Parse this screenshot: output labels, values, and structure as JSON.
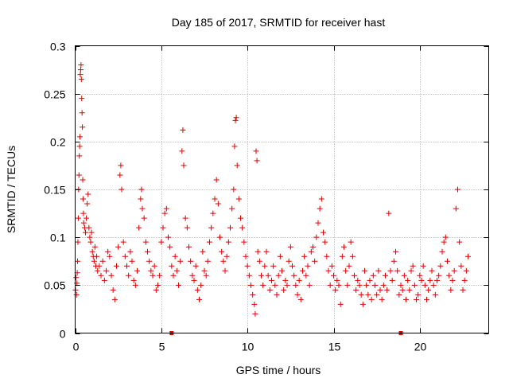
{
  "chart_data": {
    "type": "scatter",
    "title": "Day 185 of 2017, SRMTID for receiver hast",
    "xlabel": "GPS time / hours",
    "ylabel": "SRMTID / TECUs",
    "xlim": [
      0,
      24
    ],
    "ylim": [
      0,
      0.3
    ],
    "xticks": [
      {
        "value": 0,
        "label": "0"
      },
      {
        "value": 5,
        "label": "5"
      },
      {
        "value": 10,
        "label": "10"
      },
      {
        "value": 15,
        "label": "15"
      },
      {
        "value": 20,
        "label": "20"
      }
    ],
    "yticks": [
      {
        "value": 0,
        "label": "0"
      },
      {
        "value": 0.05,
        "label": "0.05"
      },
      {
        "value": 0.1,
        "label": "0.1"
      },
      {
        "value": 0.15,
        "label": "0.15"
      },
      {
        "value": 0.2,
        "label": "0.2"
      },
      {
        "value": 0.25,
        "label": "0.25"
      },
      {
        "value": 0.3,
        "label": "0.3"
      }
    ],
    "grid": true,
    "marker": "+",
    "series_color": "#e00000",
    "baseline_markers": [
      {
        "x": 5.6,
        "y": 0
      },
      {
        "x": 18.9,
        "y": 0
      }
    ],
    "points": [
      [
        0.02,
        0.045
      ],
      [
        0.05,
        0.058
      ],
      [
        0.08,
        0.04
      ],
      [
        0.1,
        0.052
      ],
      [
        0.12,
        0.063
      ],
      [
        0.14,
        0.075
      ],
      [
        0.16,
        0.095
      ],
      [
        0.18,
        0.12
      ],
      [
        0.2,
        0.15
      ],
      [
        0.22,
        0.165
      ],
      [
        0.24,
        0.185
      ],
      [
        0.26,
        0.195
      ],
      [
        0.28,
        0.205
      ],
      [
        0.3,
        0.27
      ],
      [
        0.32,
        0.275
      ],
      [
        0.34,
        0.28
      ],
      [
        0.36,
        0.265
      ],
      [
        0.38,
        0.245
      ],
      [
        0.4,
        0.23
      ],
      [
        0.42,
        0.215
      ],
      [
        0.44,
        0.16
      ],
      [
        0.46,
        0.14
      ],
      [
        0.48,
        0.125
      ],
      [
        0.5,
        0.115
      ],
      [
        0.55,
        0.11
      ],
      [
        0.6,
        0.105
      ],
      [
        0.65,
        0.12
      ],
      [
        0.7,
        0.135
      ],
      [
        0.75,
        0.145
      ],
      [
        0.8,
        0.11
      ],
      [
        0.85,
        0.1
      ],
      [
        0.9,
        0.095
      ],
      [
        0.95,
        0.105
      ],
      [
        1.0,
        0.085
      ],
      [
        1.05,
        0.08
      ],
      [
        1.1,
        0.075
      ],
      [
        1.15,
        0.09
      ],
      [
        1.2,
        0.07
      ],
      [
        1.25,
        0.08
      ],
      [
        1.3,
        0.065
      ],
      [
        1.4,
        0.07
      ],
      [
        1.5,
        0.06
      ],
      [
        1.6,
        0.075
      ],
      [
        1.7,
        0.055
      ],
      [
        1.8,
        0.065
      ],
      [
        1.9,
        0.085
      ],
      [
        2.0,
        0.08
      ],
      [
        2.1,
        0.06
      ],
      [
        2.2,
        0.045
      ],
      [
        2.3,
        0.035
      ],
      [
        2.4,
        0.07
      ],
      [
        2.5,
        0.09
      ],
      [
        2.6,
        0.165
      ],
      [
        2.65,
        0.175
      ],
      [
        2.7,
        0.15
      ],
      [
        2.8,
        0.095
      ],
      [
        2.9,
        0.08
      ],
      [
        3.0,
        0.07
      ],
      [
        3.1,
        0.06
      ],
      [
        3.2,
        0.085
      ],
      [
        3.3,
        0.075
      ],
      [
        3.4,
        0.055
      ],
      [
        3.5,
        0.05
      ],
      [
        3.6,
        0.065
      ],
      [
        3.7,
        0.11
      ],
      [
        3.8,
        0.14
      ],
      [
        3.85,
        0.15
      ],
      [
        3.9,
        0.13
      ],
      [
        4.0,
        0.12
      ],
      [
        4.1,
        0.095
      ],
      [
        4.2,
        0.085
      ],
      [
        4.3,
        0.075
      ],
      [
        4.4,
        0.065
      ],
      [
        4.5,
        0.06
      ],
      [
        4.6,
        0.07
      ],
      [
        4.7,
        0.045
      ],
      [
        4.8,
        0.05
      ],
      [
        4.9,
        0.06
      ],
      [
        5.0,
        0.095
      ],
      [
        5.1,
        0.11
      ],
      [
        5.2,
        0.125
      ],
      [
        5.3,
        0.13
      ],
      [
        5.4,
        0.1
      ],
      [
        5.5,
        0.09
      ],
      [
        5.6,
        0.07
      ],
      [
        5.7,
        0.06
      ],
      [
        5.8,
        0.08
      ],
      [
        5.9,
        0.065
      ],
      [
        6.0,
        0.05
      ],
      [
        6.1,
        0.075
      ],
      [
        6.2,
        0.19
      ],
      [
        6.25,
        0.212
      ],
      [
        6.3,
        0.175
      ],
      [
        6.4,
        0.12
      ],
      [
        6.5,
        0.11
      ],
      [
        6.6,
        0.09
      ],
      [
        6.7,
        0.075
      ],
      [
        6.8,
        0.06
      ],
      [
        6.9,
        0.055
      ],
      [
        7.0,
        0.07
      ],
      [
        7.1,
        0.045
      ],
      [
        7.2,
        0.035
      ],
      [
        7.3,
        0.05
      ],
      [
        7.4,
        0.085
      ],
      [
        7.5,
        0.065
      ],
      [
        7.6,
        0.06
      ],
      [
        7.7,
        0.075
      ],
      [
        7.8,
        0.095
      ],
      [
        7.9,
        0.11
      ],
      [
        8.0,
        0.125
      ],
      [
        8.1,
        0.14
      ],
      [
        8.2,
        0.16
      ],
      [
        8.3,
        0.135
      ],
      [
        8.4,
        0.1
      ],
      [
        8.5,
        0.085
      ],
      [
        8.6,
        0.075
      ],
      [
        8.7,
        0.065
      ],
      [
        8.8,
        0.08
      ],
      [
        8.9,
        0.095
      ],
      [
        9.0,
        0.11
      ],
      [
        9.1,
        0.13
      ],
      [
        9.2,
        0.15
      ],
      [
        9.25,
        0.195
      ],
      [
        9.3,
        0.222
      ],
      [
        9.35,
        0.225
      ],
      [
        9.4,
        0.175
      ],
      [
        9.5,
        0.14
      ],
      [
        9.6,
        0.12
      ],
      [
        9.7,
        0.11
      ],
      [
        9.8,
        0.095
      ],
      [
        9.9,
        0.08
      ],
      [
        10.0,
        0.07
      ],
      [
        10.1,
        0.06
      ],
      [
        10.2,
        0.05
      ],
      [
        10.3,
        0.04
      ],
      [
        10.4,
        0.03
      ],
      [
        10.45,
        0.02
      ],
      [
        10.5,
        0.19
      ],
      [
        10.55,
        0.18
      ],
      [
        10.6,
        0.085
      ],
      [
        10.7,
        0.075
      ],
      [
        10.8,
        0.06
      ],
      [
        10.9,
        0.05
      ],
      [
        11.0,
        0.07
      ],
      [
        11.1,
        0.085
      ],
      [
        11.2,
        0.06
      ],
      [
        11.3,
        0.045
      ],
      [
        11.4,
        0.055
      ],
      [
        11.5,
        0.07
      ],
      [
        11.6,
        0.05
      ],
      [
        11.7,
        0.04
      ],
      [
        11.8,
        0.06
      ],
      [
        11.9,
        0.08
      ],
      [
        12.0,
        0.065
      ],
      [
        12.1,
        0.045
      ],
      [
        12.2,
        0.055
      ],
      [
        12.3,
        0.05
      ],
      [
        12.4,
        0.075
      ],
      [
        12.5,
        0.09
      ],
      [
        12.6,
        0.07
      ],
      [
        12.7,
        0.06
      ],
      [
        12.8,
        0.05
      ],
      [
        12.9,
        0.04
      ],
      [
        13.0,
        0.055
      ],
      [
        13.1,
        0.035
      ],
      [
        13.2,
        0.065
      ],
      [
        13.3,
        0.08
      ],
      [
        13.4,
        0.06
      ],
      [
        13.5,
        0.07
      ],
      [
        13.6,
        0.05
      ],
      [
        13.7,
        0.085
      ],
      [
        13.8,
        0.09
      ],
      [
        13.9,
        0.075
      ],
      [
        14.0,
        0.1
      ],
      [
        14.1,
        0.115
      ],
      [
        14.2,
        0.13
      ],
      [
        14.3,
        0.14
      ],
      [
        14.4,
        0.105
      ],
      [
        14.5,
        0.095
      ],
      [
        14.6,
        0.08
      ],
      [
        14.7,
        0.065
      ],
      [
        14.8,
        0.05
      ],
      [
        14.9,
        0.07
      ],
      [
        15.0,
        0.06
      ],
      [
        15.1,
        0.045
      ],
      [
        15.2,
        0.055
      ],
      [
        15.3,
        0.05
      ],
      [
        15.4,
        0.03
      ],
      [
        15.5,
        0.08
      ],
      [
        15.6,
        0.09
      ],
      [
        15.7,
        0.065
      ],
      [
        15.8,
        0.05
      ],
      [
        15.9,
        0.07
      ],
      [
        16.0,
        0.095
      ],
      [
        16.1,
        0.08
      ],
      [
        16.2,
        0.06
      ],
      [
        16.3,
        0.045
      ],
      [
        16.4,
        0.055
      ],
      [
        16.5,
        0.05
      ],
      [
        16.6,
        0.04
      ],
      [
        16.7,
        0.03
      ],
      [
        16.8,
        0.065
      ],
      [
        16.9,
        0.05
      ],
      [
        17.0,
        0.04
      ],
      [
        17.1,
        0.055
      ],
      [
        17.2,
        0.035
      ],
      [
        17.3,
        0.06
      ],
      [
        17.4,
        0.05
      ],
      [
        17.5,
        0.04
      ],
      [
        17.6,
        0.065
      ],
      [
        17.7,
        0.045
      ],
      [
        17.8,
        0.035
      ],
      [
        17.9,
        0.05
      ],
      [
        18.0,
        0.06
      ],
      [
        18.1,
        0.045
      ],
      [
        18.2,
        0.125
      ],
      [
        18.3,
        0.065
      ],
      [
        18.4,
        0.055
      ],
      [
        18.5,
        0.075
      ],
      [
        18.6,
        0.085
      ],
      [
        18.7,
        0.065
      ],
      [
        18.8,
        0.04
      ],
      [
        18.9,
        0.05
      ],
      [
        19.0,
        0.045
      ],
      [
        19.1,
        0.06
      ],
      [
        19.2,
        0.035
      ],
      [
        19.3,
        0.055
      ],
      [
        19.4,
        0.045
      ],
      [
        19.5,
        0.065
      ],
      [
        19.6,
        0.07
      ],
      [
        19.7,
        0.05
      ],
      [
        19.8,
        0.035
      ],
      [
        19.9,
        0.04
      ],
      [
        20.0,
        0.06
      ],
      [
        20.1,
        0.055
      ],
      [
        20.2,
        0.07
      ],
      [
        20.3,
        0.05
      ],
      [
        20.4,
        0.035
      ],
      [
        20.5,
        0.045
      ],
      [
        20.6,
        0.055
      ],
      [
        20.7,
        0.065
      ],
      [
        20.8,
        0.05
      ],
      [
        20.9,
        0.04
      ],
      [
        21.0,
        0.055
      ],
      [
        21.1,
        0.06
      ],
      [
        21.2,
        0.07
      ],
      [
        21.3,
        0.085
      ],
      [
        21.4,
        0.095
      ],
      [
        21.5,
        0.1
      ],
      [
        21.6,
        0.075
      ],
      [
        21.7,
        0.06
      ],
      [
        21.8,
        0.045
      ],
      [
        21.9,
        0.055
      ],
      [
        22.0,
        0.065
      ],
      [
        22.1,
        0.13
      ],
      [
        22.2,
        0.15
      ],
      [
        22.3,
        0.095
      ],
      [
        22.4,
        0.07
      ],
      [
        22.5,
        0.045
      ],
      [
        22.6,
        0.055
      ],
      [
        22.7,
        0.065
      ],
      [
        22.8,
        0.08
      ]
    ]
  }
}
